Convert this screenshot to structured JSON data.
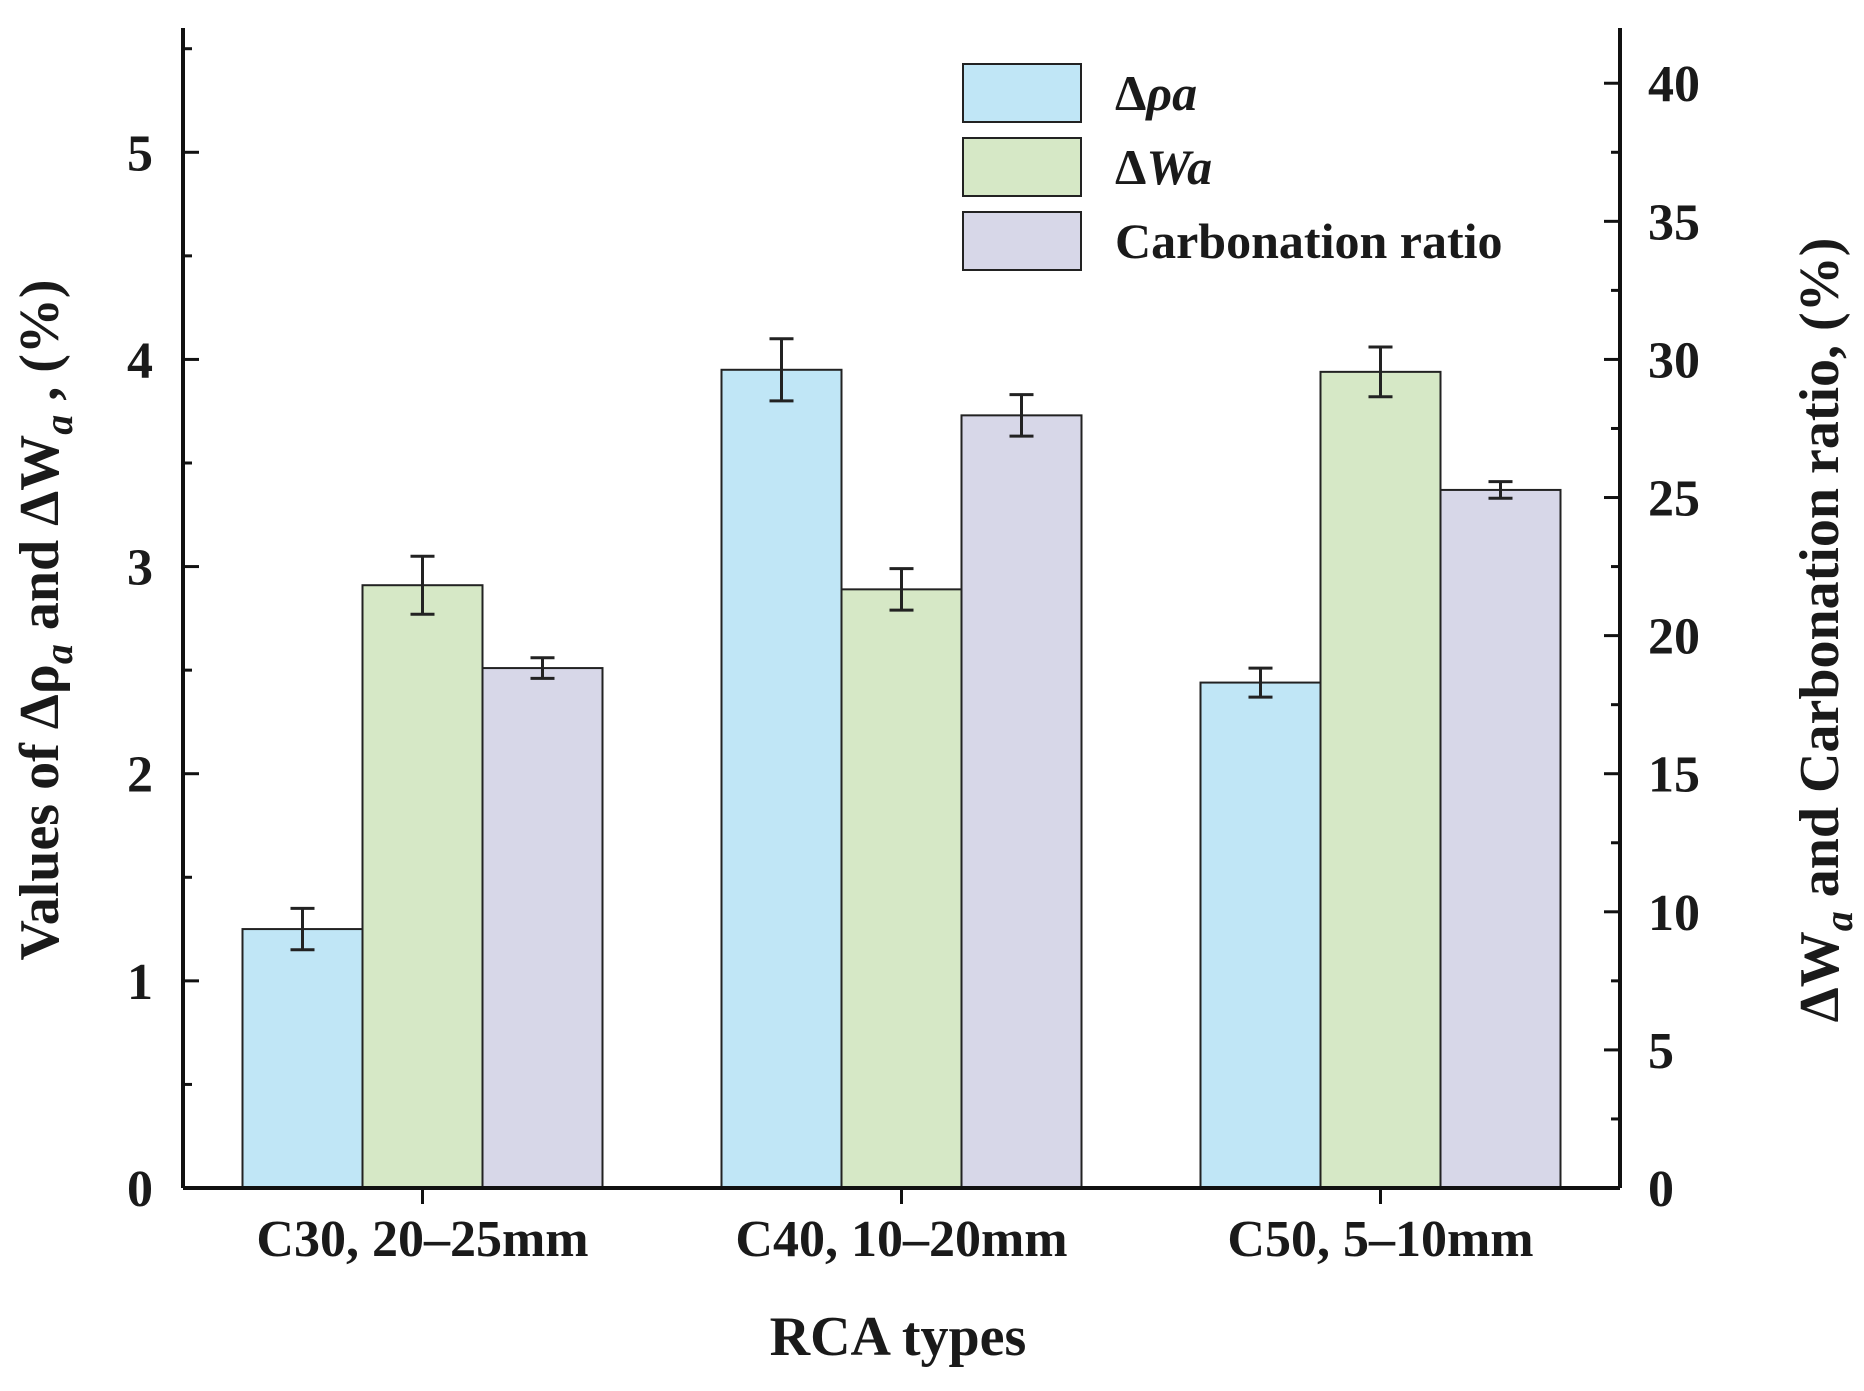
{
  "chart_data": {
    "type": "bar",
    "categories": [
      "C30, 20–25mm",
      "C40, 10–20mm",
      "C50, 5–10mm"
    ],
    "xlabel": "RCA types",
    "ylabel_left": "Values of Δρ",
    "ylabel_left_sub": "a",
    "ylabel_left_mid": " and ΔW",
    "ylabel_left_sub2": "a",
    "ylabel_left_end": " , (%)",
    "ylabel_right_pre": "ΔW",
    "ylabel_right_sub": "a",
    "ylabel_right_end": " and Carbonation ratio, (%)",
    "ylim_left": [
      0,
      5.6
    ],
    "ylim_right": [
      0,
      42
    ],
    "yticks_left": [
      0,
      1,
      2,
      3,
      4,
      5
    ],
    "yticks_right": [
      0,
      5,
      10,
      15,
      20,
      25,
      30,
      35,
      40
    ],
    "legend_position": "top-right",
    "series": [
      {
        "name": "Δρa",
        "legend_symbol": "Δ",
        "legend_italic": "ρa",
        "axis": "left",
        "color": "#c0e6f6",
        "values": [
          1.25,
          3.95,
          2.44
        ],
        "errors": [
          0.1,
          0.15,
          0.07
        ]
      },
      {
        "name": "ΔWa",
        "legend_symbol": "Δ",
        "legend_italic": "Wa",
        "axis": "left",
        "color": "#d6e8c6",
        "values": [
          2.91,
          2.89,
          3.94
        ],
        "errors": [
          0.14,
          0.1,
          0.12
        ]
      },
      {
        "name": "Carbonation ratio",
        "legend_symbol": "",
        "legend_italic": "",
        "legend_text": "Carbonation ratio",
        "axis": "left",
        "color": "#d7d7e8",
        "values": [
          2.51,
          3.73,
          3.37
        ],
        "errors": [
          0.05,
          0.1,
          0.04
        ]
      }
    ]
  }
}
